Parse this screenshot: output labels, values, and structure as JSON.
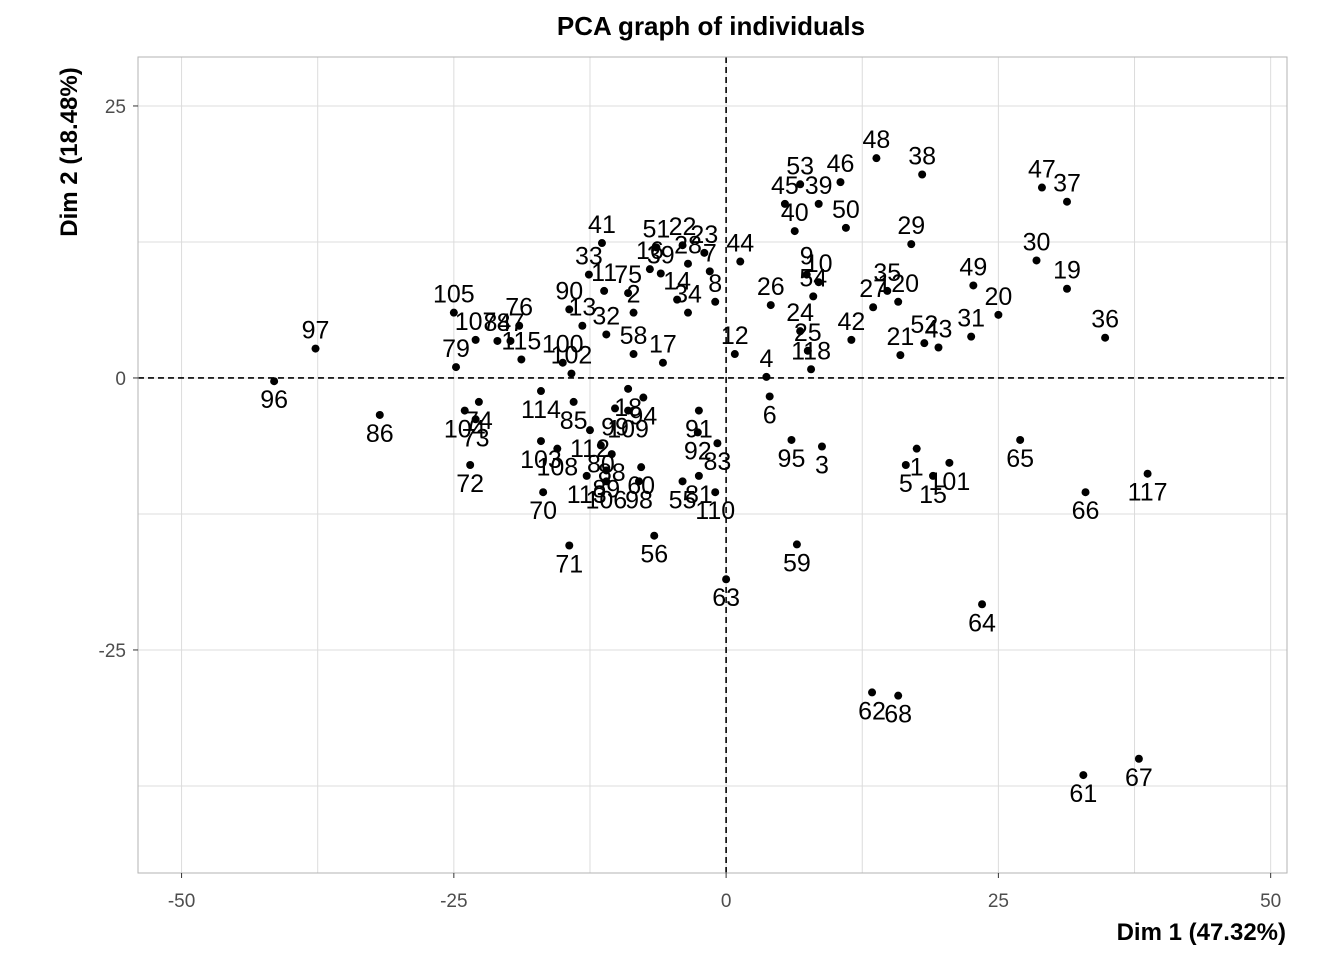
{
  "chart_data": {
    "type": "scatter",
    "title": "PCA graph of individuals",
    "xlabel": "Dim 1 (47.32%)",
    "ylabel": "Dim 2 (18.48%)",
    "xlim": [
      -54,
      51.5
    ],
    "ylim": [
      -45.5,
      29.5
    ],
    "xticks": [
      {
        "value": -50,
        "label": "-50"
      },
      {
        "value": -25,
        "label": "-25"
      },
      {
        "value": 0,
        "label": "0"
      },
      {
        "value": 25,
        "label": "25"
      },
      {
        "value": 50,
        "label": "50"
      }
    ],
    "yticks": [
      {
        "value": 25,
        "label": "25"
      },
      {
        "value": 0,
        "label": "0"
      },
      {
        "value": -25,
        "label": "-25"
      }
    ],
    "grid": true,
    "reference_lines": {
      "x": 0,
      "y": 0,
      "style": "dashed"
    },
    "point_color": "#000000",
    "points": [
      {
        "label": "97",
        "x": -37.7,
        "y": 2.7
      },
      {
        "label": "96",
        "x": -41.5,
        "y": -0.3
      },
      {
        "label": "86",
        "x": -31.8,
        "y": -3.4
      },
      {
        "label": "105",
        "x": -25.0,
        "y": 6.0
      },
      {
        "label": "79",
        "x": -24.8,
        "y": 1.0
      },
      {
        "label": "107",
        "x": -23.0,
        "y": 3.5
      },
      {
        "label": "84",
        "x": -21.0,
        "y": 3.4
      },
      {
        "label": "87",
        "x": -19.8,
        "y": 3.4
      },
      {
        "label": "76",
        "x": -19.0,
        "y": 4.8
      },
      {
        "label": "115",
        "x": -18.8,
        "y": 1.7
      },
      {
        "label": "104",
        "x": -24.0,
        "y": -3.0
      },
      {
        "label": "74",
        "x": -22.7,
        "y": -2.2
      },
      {
        "label": "73",
        "x": -23.0,
        "y": -3.8
      },
      {
        "label": "114",
        "x": -17.0,
        "y": -1.2
      },
      {
        "label": "72",
        "x": -23.5,
        "y": -8.0
      },
      {
        "label": "103",
        "x": -17.0,
        "y": -5.8
      },
      {
        "label": "108",
        "x": -15.5,
        "y": -6.5
      },
      {
        "label": "70",
        "x": -16.8,
        "y": -10.5
      },
      {
        "label": "71",
        "x": -14.4,
        "y": -15.4
      },
      {
        "label": "90",
        "x": -14.4,
        "y": 6.3
      },
      {
        "label": "11",
        "x": -11.2,
        "y": 8.0
      },
      {
        "label": "13",
        "x": -13.2,
        "y": 4.8
      },
      {
        "label": "41",
        "x": -11.4,
        "y": 12.4
      },
      {
        "label": "33",
        "x": -12.6,
        "y": 9.5
      },
      {
        "label": "2",
        "x": -8.5,
        "y": 6.0
      },
      {
        "label": "32",
        "x": -11.0,
        "y": 4.0
      },
      {
        "label": "58",
        "x": -8.5,
        "y": 2.2
      },
      {
        "label": "16",
        "x": -7.0,
        "y": 10.0
      },
      {
        "label": "75",
        "x": -9.0,
        "y": 7.8
      },
      {
        "label": "39",
        "x": -6.0,
        "y": 9.6
      },
      {
        "label": "14",
        "x": -4.5,
        "y": 7.2
      },
      {
        "label": "34",
        "x": -3.5,
        "y": 6.0
      },
      {
        "label": "28",
        "x": -3.5,
        "y": 10.5
      },
      {
        "label": "22",
        "x": -4.0,
        "y": 12.2
      },
      {
        "label": "23",
        "x": -2.0,
        "y": 11.5
      },
      {
        "label": "51",
        "x": -6.4,
        "y": 12.0
      },
      {
        "label": "7",
        "x": -1.5,
        "y": 9.8
      },
      {
        "label": "8",
        "x": -1.0,
        "y": 7.0
      },
      {
        "label": "17",
        "x": -5.8,
        "y": 1.4
      },
      {
        "label": "102",
        "x": -14.2,
        "y": 0.4
      },
      {
        "label": "100",
        "x": -15.0,
        "y": 1.4
      },
      {
        "label": "18",
        "x": -9.0,
        "y": -1.0
      },
      {
        "label": "94",
        "x": -7.6,
        "y": -1.8
      },
      {
        "label": "85",
        "x": -14.0,
        "y": -2.2
      },
      {
        "label": "99",
        "x": -10.2,
        "y": -2.8
      },
      {
        "label": "109",
        "x": -9.0,
        "y": -3.0
      },
      {
        "label": "91",
        "x": -2.5,
        "y": -3.0
      },
      {
        "label": "112",
        "x": -12.5,
        "y": -4.8
      },
      {
        "label": "80",
        "x": -11.5,
        "y": -6.2
      },
      {
        "label": "88",
        "x": -10.5,
        "y": -7.0
      },
      {
        "label": "92",
        "x": -2.6,
        "y": -5.0
      },
      {
        "label": "60",
        "x": -7.8,
        "y": -8.2
      },
      {
        "label": "83",
        "x": -0.8,
        "y": -6.0
      },
      {
        "label": "89",
        "x": -11.0,
        "y": -8.5
      },
      {
        "label": "113",
        "x": -12.8,
        "y": -9.0
      },
      {
        "label": "106",
        "x": -11.0,
        "y": -9.5
      },
      {
        "label": "98",
        "x": -8.0,
        "y": -9.5
      },
      {
        "label": "55",
        "x": -4.0,
        "y": -9.5
      },
      {
        "label": "81",
        "x": -2.5,
        "y": -9.0
      },
      {
        "label": "110",
        "x": -1.0,
        "y": -10.5
      },
      {
        "label": "56",
        "x": -6.6,
        "y": -14.5
      },
      {
        "label": "63",
        "x": 0.0,
        "y": -18.5
      },
      {
        "label": "12",
        "x": 0.8,
        "y": 2.2
      },
      {
        "label": "44",
        "x": 1.3,
        "y": 10.7
      },
      {
        "label": "4",
        "x": 3.7,
        "y": 0.1
      },
      {
        "label": "6",
        "x": 4.0,
        "y": -1.7
      },
      {
        "label": "95",
        "x": 6.0,
        "y": -5.7
      },
      {
        "label": "3",
        "x": 8.8,
        "y": -6.3
      },
      {
        "label": "59",
        "x": 6.5,
        "y": -15.3
      },
      {
        "label": "45",
        "x": 5.4,
        "y": 16.0
      },
      {
        "label": "53",
        "x": 6.8,
        "y": 17.8
      },
      {
        "label": "40",
        "x": 6.3,
        "y": 13.5
      },
      {
        "label": "46",
        "x": 10.5,
        "y": 18.0
      },
      {
        "label": "39",
        "x": 8.5,
        "y": 16.0
      },
      {
        "label": "48",
        "x": 13.8,
        "y": 20.2
      },
      {
        "label": "50",
        "x": 11.0,
        "y": 13.8
      },
      {
        "label": "38",
        "x": 18.0,
        "y": 18.7
      },
      {
        "label": "29",
        "x": 17.0,
        "y": 12.3
      },
      {
        "label": "9",
        "x": 7.4,
        "y": 9.5
      },
      {
        "label": "10",
        "x": 8.5,
        "y": 8.8
      },
      {
        "label": "26",
        "x": 4.1,
        "y": 6.7
      },
      {
        "label": "54",
        "x": 8.0,
        "y": 7.5
      },
      {
        "label": "24",
        "x": 6.8,
        "y": 4.3
      },
      {
        "label": "25",
        "x": 7.5,
        "y": 2.5
      },
      {
        "label": "27",
        "x": 13.5,
        "y": 6.5
      },
      {
        "label": "35",
        "x": 14.8,
        "y": 8.0
      },
      {
        "label": "120",
        "x": 15.8,
        "y": 7.0
      },
      {
        "label": "42",
        "x": 11.5,
        "y": 3.5
      },
      {
        "label": "118",
        "x": 7.8,
        "y": 0.8
      },
      {
        "label": "21",
        "x": 16.0,
        "y": 2.1
      },
      {
        "label": "52",
        "x": 18.2,
        "y": 3.2
      },
      {
        "label": "43",
        "x": 19.5,
        "y": 2.8
      },
      {
        "label": "31",
        "x": 22.5,
        "y": 3.8
      },
      {
        "label": "49",
        "x": 22.7,
        "y": 8.5
      },
      {
        "label": "20",
        "x": 25.0,
        "y": 5.8
      },
      {
        "label": "30",
        "x": 28.5,
        "y": 10.8
      },
      {
        "label": "47",
        "x": 29.0,
        "y": 17.5
      },
      {
        "label": "37",
        "x": 31.3,
        "y": 16.2
      },
      {
        "label": "19",
        "x": 31.3,
        "y": 8.2
      },
      {
        "label": "36",
        "x": 34.8,
        "y": 3.7
      },
      {
        "label": "1",
        "x": 17.5,
        "y": -6.5
      },
      {
        "label": "5",
        "x": 16.5,
        "y": -8.0
      },
      {
        "label": "15",
        "x": 19.0,
        "y": -9.0
      },
      {
        "label": "101",
        "x": 20.5,
        "y": -7.8
      },
      {
        "label": "65",
        "x": 27.0,
        "y": -5.7
      },
      {
        "label": "117",
        "x": 38.7,
        "y": -8.8
      },
      {
        "label": "66",
        "x": 33.0,
        "y": -10.5
      },
      {
        "label": "64",
        "x": 23.5,
        "y": -20.8
      },
      {
        "label": "62",
        "x": 13.4,
        "y": -28.9
      },
      {
        "label": "68",
        "x": 15.8,
        "y": -29.2
      },
      {
        "label": "67",
        "x": 37.9,
        "y": -35.0
      },
      {
        "label": "61",
        "x": 32.8,
        "y": -36.5
      }
    ]
  }
}
